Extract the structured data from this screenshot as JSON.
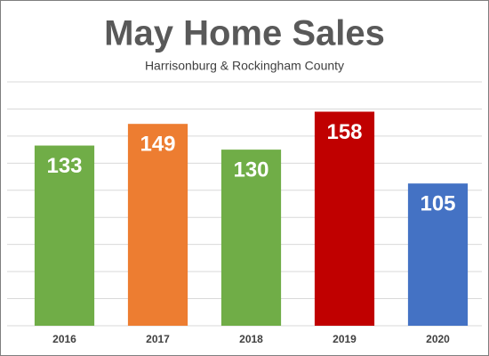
{
  "chart_data": {
    "type": "bar",
    "title": "May Home Sales",
    "subtitle": "Harrisonburg & Rockingham County",
    "categories": [
      "2016",
      "2017",
      "2018",
      "2019",
      "2020"
    ],
    "values": [
      133,
      149,
      130,
      158,
      105
    ],
    "colors": [
      "#70ad47",
      "#ed7d31",
      "#70ad47",
      "#c00000",
      "#4472c4"
    ],
    "ylim": [
      0,
      180
    ],
    "yticks": [
      0,
      20,
      40,
      60,
      80,
      100,
      120,
      140,
      160,
      180
    ],
    "grid": true
  }
}
